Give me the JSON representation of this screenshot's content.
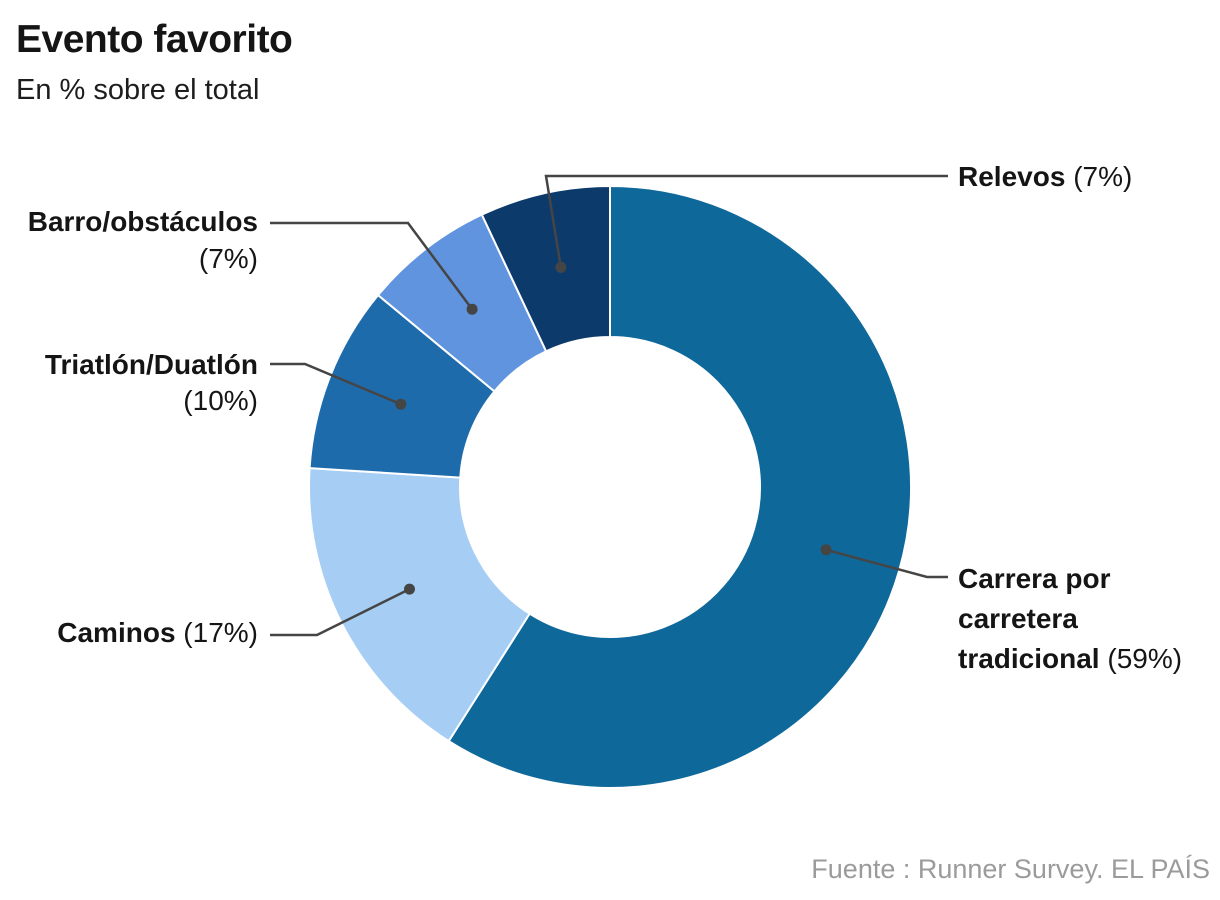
{
  "header": {
    "title": "Evento favorito",
    "subtitle": "En % sobre el total"
  },
  "chart_data": {
    "type": "pie",
    "style": "donut",
    "title": "Evento favorito",
    "subtitle": "En % sobre el total",
    "unit": "percent_of_total",
    "direction": "clockwise",
    "start_angle_deg": 0,
    "inner_radius_ratio": 0.5,
    "legend": "none",
    "segments": [
      {
        "label": "Carrera por carretera tradicional",
        "label_lines": [
          "Carrera por",
          "carretera",
          "tradicional"
        ],
        "value": 59,
        "pct_text": "(59%)",
        "color": "#0f689a"
      },
      {
        "label": "Caminos",
        "value": 17,
        "pct_text": "(17%)",
        "color": "#a6cef5"
      },
      {
        "label": "Triatlón/Duatlón",
        "value": 10,
        "pct_text": "(10%)",
        "color": "#1e6bac"
      },
      {
        "label": "Barro/obstáculos",
        "value": 7,
        "pct_text": "(7%)",
        "color": "#6094de"
      },
      {
        "label": "Relevos",
        "value": 7,
        "pct_text": "(7%)",
        "color": "#0c3a6b"
      }
    ],
    "leader_line_color": "#454545",
    "slice_divider_color": "#ffffff"
  },
  "footer": {
    "source": "Fuente : Runner Survey. EL PAÍS"
  }
}
